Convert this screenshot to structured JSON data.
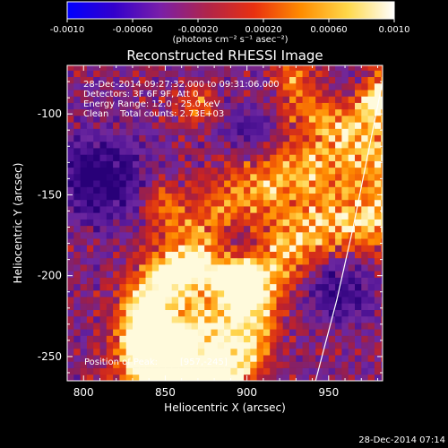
{
  "colorbar": {
    "ticks": [
      "-0.0010",
      "-0.00060",
      "-0.00020",
      "0.00020",
      "0.00060",
      "0.0010"
    ],
    "tick_values": [
      -0.001,
      -0.0006,
      -0.0002,
      0.0002,
      0.0006,
      0.001
    ],
    "range": [
      -0.001,
      0.001
    ],
    "unit_label": "(photons cm⁻² s⁻¹ asec⁻²)",
    "colors": [
      "#0000ff",
      "#3300cc",
      "#7a1fa8",
      "#b0244a",
      "#e83010",
      "#ff8c00",
      "#ffd84a",
      "#ffffff"
    ]
  },
  "chart_data": {
    "type": "heatmap",
    "title": "Reconstructed RHESSI Image",
    "xlabel": "Heliocentric X (arcsec)",
    "ylabel": "Heliocentric Y (arcsec)",
    "xlim": [
      790,
      983
    ],
    "ylim": [
      -265,
      -70
    ],
    "xticks": [
      800,
      850,
      900,
      950
    ],
    "yticks": [
      -100,
      -150,
      -200,
      -250
    ],
    "annotations": [
      "28-Dec-2014 09:27:32.000 to 09:31:06.000",
      "Detectors: 3F 6F 9F, Att 0",
      "Energy Range: 12.0 - 25.0 keV",
      "Clean    Total counts: 2.73E+03"
    ],
    "peak_label": "Position of Peak:",
    "peak_value": "[957,-245]",
    "limb_curve": [
      [
        985,
        -70
      ],
      [
        975,
        -120
      ],
      [
        965,
        -170
      ],
      [
        955,
        -215
      ],
      [
        942,
        -265
      ]
    ]
  },
  "footer": {
    "timestamp": "28-Dec-2014 07:14"
  }
}
